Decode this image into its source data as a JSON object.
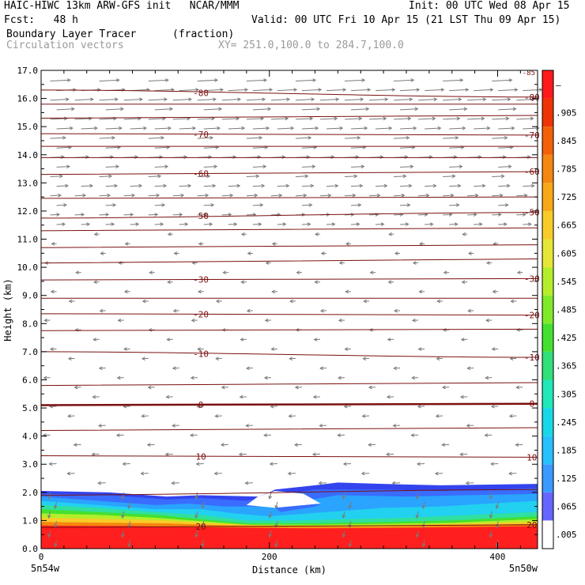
{
  "header": {
    "model_line": "HAIC-HIWC 13km ARW-GFS init   NCAR/MMM",
    "init_line": "Init: 00 UTC Wed 08 Apr 15",
    "fcst_line": "Fcst:   48 h",
    "valid_line": "Valid: 00 UTC Fri 10 Apr 15 (21 LST Thu 09 Apr 15)",
    "field_name": "Boundary Layer Tracer",
    "field_units": "(fraction)",
    "vector_label": "Circulation vectors",
    "xy_label": "XY= 251.0,100.0 to 284.7,100.0"
  },
  "chart_data": {
    "type": "cross-section",
    "ylabel": "Height (km)",
    "xlabel": "Distance (km)",
    "ylim": [
      0,
      17
    ],
    "xlim": [
      0,
      435
    ],
    "yticks": [
      "0.0",
      "1.0",
      "2.0",
      "3.0",
      "4.0",
      "5.0",
      "6.0",
      "7.0",
      "8.0",
      "9.0",
      "10.0",
      "11.0",
      "12.0",
      "13.0",
      "14.0",
      "15.0",
      "16.0",
      "17.0"
    ],
    "xticks": [
      0,
      200,
      400
    ],
    "xtick_labels": [
      "0",
      "200",
      "400"
    ],
    "x_end_labels": [
      "5n54w",
      "5n50w"
    ],
    "colorbar": {
      "labels": [
        ".005",
        ".065",
        ".125",
        ".185",
        ".245",
        ".305",
        ".365",
        ".425",
        ".485",
        ".545",
        ".605",
        ".665",
        ".725",
        ".785",
        ".845",
        ".905",
        "–"
      ],
      "colors": [
        "#ffffff",
        "#6666ff",
        "#3a9aff",
        "#26c0ff",
        "#18d8e8",
        "#20e8b8",
        "#30e078",
        "#44e030",
        "#80ea2a",
        "#b4ee2a",
        "#e6e636",
        "#f8cc28",
        "#f7a818",
        "#f58610",
        "#f26008",
        "#ee3404",
        "#ff1a1a"
      ]
    },
    "tracer_layer": {
      "description": "high fraction (red) below ~0.8 km, decreasing through yellow/green/cyan/blue to ~2 km",
      "top_height_km": 2.1
    },
    "isotherms": {
      "units": "deg C",
      "levels": [
        {
          "label": "20",
          "y_left": 0.75,
          "y_right": 0.85
        },
        {
          "label": "10",
          "y_left": 3.3,
          "y_right": 3.25
        },
        {
          "label": "0",
          "y_left": 5.1,
          "y_right": 5.15
        },
        {
          "label": "-10",
          "y_left": 7.0,
          "y_right": 6.8
        },
        {
          "label": "-20",
          "y_left": 8.35,
          "y_right": 8.3
        },
        {
          "label": "-30",
          "y_left": 9.55,
          "y_right": 9.6
        },
        {
          "label": "-50",
          "y_left": 11.75,
          "y_right": 11.95
        },
        {
          "label": "-60",
          "y_left": 13.3,
          "y_right": 13.4
        },
        {
          "label": "-70",
          "y_left": 14.75,
          "y_right": 14.7
        },
        {
          "label": "-80",
          "y_left": 16.3,
          "y_right": 16.05
        }
      ],
      "unlabeled_levels": [
        {
          "y_left": 1.9,
          "y_right": 2.1
        },
        {
          "y_left": 4.2,
          "y_right": 4.3
        },
        {
          "y_left": 5.8,
          "y_right": 5.9
        },
        {
          "y_left": 7.75,
          "y_right": 7.8
        },
        {
          "y_left": 8.9,
          "y_right": 8.9
        },
        {
          "y_left": 10.15,
          "y_right": 10.3
        },
        {
          "y_left": 10.7,
          "y_right": 10.8
        },
        {
          "y_left": 11.3,
          "y_right": 11.4
        },
        {
          "y_left": 12.45,
          "y_right": 12.5
        },
        {
          "y_left": 13.9,
          "y_right": 13.9
        },
        {
          "y_left": 14.3,
          "y_right": 14.3
        },
        {
          "y_left": 15.3,
          "y_right": 15.4
        },
        {
          "y_left": 15.8,
          "y_right": 15.8
        }
      ],
      "top_right_label": "-85"
    },
    "vectors": {
      "upper_direction": "eastward",
      "middle_direction": "westward",
      "lower_direction": "downward/westward"
    }
  }
}
